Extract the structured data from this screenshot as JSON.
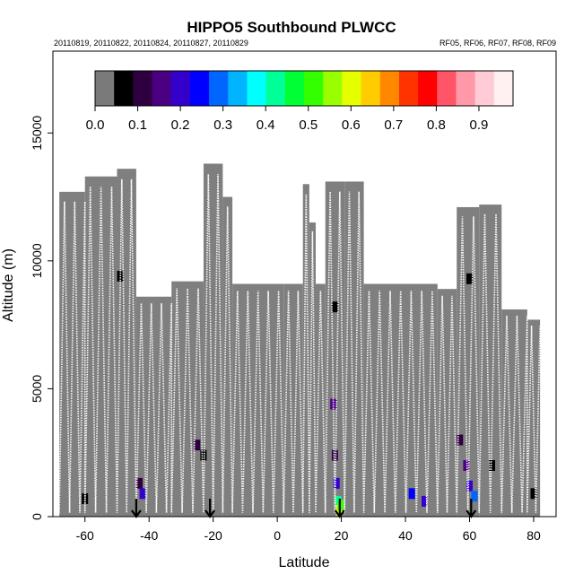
{
  "chart_data": {
    "type": "heatmap",
    "title": "HIPPO5 Southbound PLWCC",
    "dates_text": "20110819, 20110822, 20110824, 20110827, 20110829",
    "flights_text": "RF05, RF06, RF07, RF08, RF09",
    "xlabel": "Latitude",
    "ylabel": "Altitude (m)",
    "xlim": [
      -70,
      87
    ],
    "ylim": [
      0,
      18200
    ],
    "x_ticks": [
      -60,
      -40,
      -20,
      0,
      20,
      40,
      60,
      80
    ],
    "y_ticks": [
      0,
      5000,
      10000,
      15000
    ],
    "colorbar": {
      "range": [
        0.0,
        0.98
      ],
      "ticks": [
        0.0,
        0.1,
        0.2,
        0.3,
        0.4,
        0.5,
        0.6,
        0.7,
        0.8,
        0.9
      ],
      "colors": [
        "#7a7a7a",
        "#000000",
        "#2e0040",
        "#4b0082",
        "#3300cc",
        "#0000ff",
        "#0066ff",
        "#00b4ff",
        "#00ffff",
        "#00ff99",
        "#00ff33",
        "#33ff00",
        "#99ff00",
        "#e6ff00",
        "#ffcc00",
        "#ff8800",
        "#ff3300",
        "#ff0000",
        "#ff5566",
        "#ff99aa",
        "#ffccd5",
        "#fff0f2"
      ]
    },
    "flight_boundary_arrows_lat": [
      -44,
      -21,
      19.5,
      60.5
    ],
    "coverage_columns": [
      {
        "lat_range": [
          -68,
          -60
        ],
        "top_m": 12700
      },
      {
        "lat_range": [
          -60,
          -50
        ],
        "top_m": 13300
      },
      {
        "lat_range": [
          -50,
          -44
        ],
        "top_m": 13600
      },
      {
        "lat_range": [
          -44,
          -33
        ],
        "top_m": 8600
      },
      {
        "lat_range": [
          -33,
          -23
        ],
        "top_m": 9200
      },
      {
        "lat_range": [
          -23,
          -17
        ],
        "top_m": 13800
      },
      {
        "lat_range": [
          -17,
          -14
        ],
        "top_m": 12500
      },
      {
        "lat_range": [
          -14,
          2
        ],
        "top_m": 9100
      },
      {
        "lat_range": [
          2,
          8
        ],
        "top_m": 9100
      },
      {
        "lat_range": [
          8,
          10
        ],
        "top_m": 13000
      },
      {
        "lat_range": [
          10,
          12
        ],
        "top_m": 11500
      },
      {
        "lat_range": [
          12,
          15
        ],
        "top_m": 9100
      },
      {
        "lat_range": [
          15,
          21
        ],
        "top_m": 13100
      },
      {
        "lat_range": [
          21,
          27
        ],
        "top_m": 13100
      },
      {
        "lat_range": [
          27,
          50
        ],
        "top_m": 9100
      },
      {
        "lat_range": [
          50,
          56
        ],
        "top_m": 8900
      },
      {
        "lat_range": [
          56,
          63
        ],
        "top_m": 12100
      },
      {
        "lat_range": [
          63,
          70
        ],
        "top_m": 12200
      },
      {
        "lat_range": [
          70,
          78
        ],
        "top_m": 8100
      },
      {
        "lat_range": [
          78,
          82
        ],
        "top_m": 7700
      }
    ],
    "plwcc_cells": [
      {
        "lat": -60,
        "alt_m": 700,
        "value": 0.05
      },
      {
        "lat": -49,
        "alt_m": 9400,
        "value": 0.05
      },
      {
        "lat": -43,
        "alt_m": 1300,
        "value": 0.12
      },
      {
        "lat": -42,
        "alt_m": 900,
        "value": 0.18
      },
      {
        "lat": -25,
        "alt_m": 2800,
        "value": 0.1
      },
      {
        "lat": -23,
        "alt_m": 2400,
        "value": 0.08
      },
      {
        "lat": 18,
        "alt_m": 8200,
        "value": 0.06
      },
      {
        "lat": 17.5,
        "alt_m": 4400,
        "value": 0.14
      },
      {
        "lat": 18,
        "alt_m": 2400,
        "value": 0.12
      },
      {
        "lat": 18.5,
        "alt_m": 1300,
        "value": 0.22
      },
      {
        "lat": 19,
        "alt_m": 600,
        "value": 0.42
      },
      {
        "lat": 19.3,
        "alt_m": 250,
        "value": 0.62
      },
      {
        "lat": 19.8,
        "alt_m": 450,
        "value": 0.5
      },
      {
        "lat": 42,
        "alt_m": 900,
        "value": 0.26
      },
      {
        "lat": 46,
        "alt_m": 600,
        "value": 0.18
      },
      {
        "lat": 57,
        "alt_m": 3000,
        "value": 0.1
      },
      {
        "lat": 59,
        "alt_m": 2000,
        "value": 0.16
      },
      {
        "lat": 60,
        "alt_m": 1200,
        "value": 0.22
      },
      {
        "lat": 61.5,
        "alt_m": 800,
        "value": 0.3
      },
      {
        "lat": 60,
        "alt_m": 9300,
        "value": 0.06
      },
      {
        "lat": 67,
        "alt_m": 2000,
        "value": 0.08
      },
      {
        "lat": 80,
        "alt_m": 900,
        "value": 0.05
      }
    ]
  }
}
